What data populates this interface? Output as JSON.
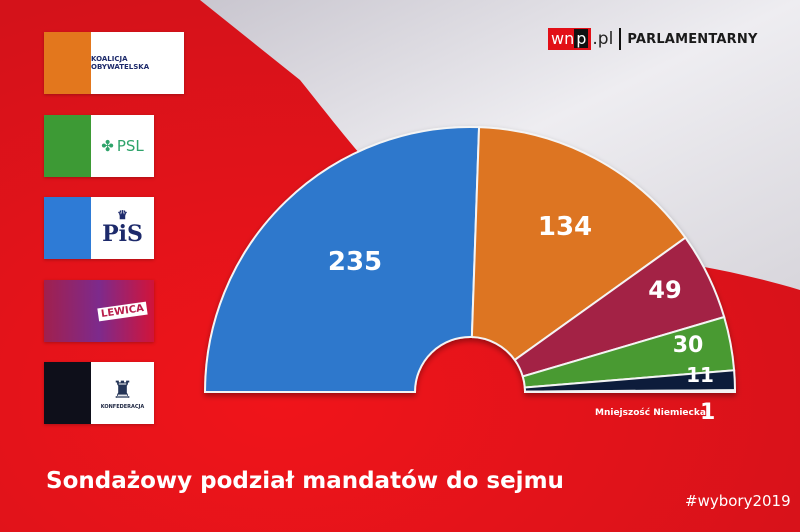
{
  "brand": {
    "wnp": "wn",
    "p": "p",
    "pl": ".pl",
    "name": "PARLAMENTARNY"
  },
  "legend": [
    {
      "party": "Koalicja Obywatelska",
      "logo_text": "KOALICJA OBYWATELSKA",
      "color": "#e3771d"
    },
    {
      "party": "PSL",
      "logo_text": "PSL",
      "color": "#3d9a35"
    },
    {
      "party": "PiS",
      "logo_text": "PiS",
      "color": "#2e7bd6"
    },
    {
      "party": "Lewica",
      "logo_text": "LEWICA",
      "color": "#a1204e"
    },
    {
      "party": "Konfederacja",
      "logo_text": "KONFEDERACJA",
      "color": "#0e0f1a"
    }
  ],
  "minority": {
    "label": "Mniejszość Niemiecka",
    "value": "1"
  },
  "title": "Sondażowy podział mandatów do sejmu",
  "hashtag": "#wybory2019",
  "chart_data": {
    "type": "pie",
    "subtype": "parliament-semicircle",
    "title": "Sondażowy podział mandatów do sejmu",
    "total": 460,
    "categories": [
      "PiS",
      "Koalicja Obywatelska",
      "Lewica",
      "PSL",
      "Konfederacja",
      "Mniejszość Niemiecka"
    ],
    "values": [
      235,
      134,
      49,
      30,
      11,
      1
    ],
    "colors": [
      "#2e78cc",
      "#dd7420",
      "#a32345",
      "#4a9a30",
      "#0f1d3a",
      "#dddddd"
    ],
    "labels": [
      "235",
      "134",
      "49",
      "30",
      "11",
      "1"
    ],
    "legend_position": "left"
  }
}
